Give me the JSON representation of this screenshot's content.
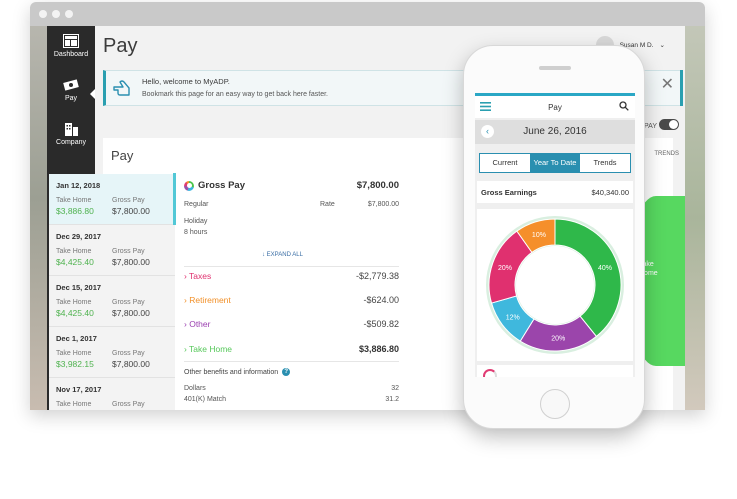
{
  "browser": {
    "dots": 3
  },
  "nav": [
    {
      "label": "Dashboard",
      "icon": "dashboard-icon"
    },
    {
      "label": "Pay",
      "icon": "pay-icon"
    },
    {
      "label": "Company",
      "icon": "company-icon"
    }
  ],
  "header": {
    "title": "Pay",
    "user": "Susan M D."
  },
  "banner": {
    "title": "Hello, welcome to MyADP.",
    "text": "Bookmark this page for an easy way to get back here faster.",
    "close": "✕"
  },
  "paysection": {
    "heading": "Pay",
    "toggle_label": "PAY",
    "trends_label": "TRENDS",
    "blob_text": "Take\nHome"
  },
  "paylist": [
    {
      "date": "Jan 12, 2018",
      "th_label": "Take Home",
      "gp_label": "Gross Pay",
      "take_home": "$3,886.80",
      "gross_pay": "$7,800.00"
    },
    {
      "date": "Dec 29, 2017",
      "th_label": "Take Home",
      "gp_label": "Gross Pay",
      "take_home": "$4,425.40",
      "gross_pay": "$7,800.00"
    },
    {
      "date": "Dec 15, 2017",
      "th_label": "Take Home",
      "gp_label": "Gross Pay",
      "take_home": "$4,425.40",
      "gross_pay": "$7,800.00"
    },
    {
      "date": "Dec 1, 2017",
      "th_label": "Take Home",
      "gp_label": "Gross Pay",
      "take_home": "$3,982.15",
      "gross_pay": "$7,800.00"
    },
    {
      "date": "Nov 17, 2017",
      "th_label": "Take Home",
      "gp_label": "Gross Pay",
      "take_home": "",
      "gross_pay": ""
    }
  ],
  "details": {
    "gross_pay_label": "Gross Pay",
    "gross_pay_amount": "$7,800.00",
    "regular": "Regular",
    "rate": "Rate",
    "rate_amount": "$7,800.00",
    "holiday": "Holiday",
    "hours": "8 hours",
    "expand": "EXPAND ALL",
    "taxes": "Taxes",
    "taxes_amount": "-$2,779.38",
    "retirement": "Retirement",
    "retirement_amount": "-$624.00",
    "other": "Other",
    "other_amount": "-$509.82",
    "take_home": "Take Home",
    "take_home_amount": "$3,886.80",
    "other_benefits": "Other benefits and information",
    "benefits": [
      {
        "label": "Dollars",
        "value": "32"
      },
      {
        "label": "401(K) Match",
        "value": "31.2"
      }
    ]
  },
  "phone": {
    "title": "Pay",
    "date": "June 26, 2016",
    "tabs": [
      "Current",
      "Year To Date",
      "Trends"
    ],
    "active_tab": "Year To Date",
    "gross_label": "Gross Earnings",
    "gross_value": "$40,340.00"
  },
  "colors": {
    "accent": "#2a8fb0",
    "take_home_green": "#4fb24f",
    "taxes": "#e0306f",
    "retirement": "#f29028",
    "other": "#9b3fb0"
  },
  "chart_data": {
    "type": "pie",
    "title": "",
    "categories": [
      "",
      "",
      "",
      "",
      ""
    ],
    "values": [
      40,
      20,
      12,
      20,
      10
    ],
    "labels": [
      "40%",
      "20%",
      "12%",
      "20%",
      "10%"
    ],
    "colors": [
      "#2fb84a",
      "#9b45ab",
      "#3fb8dd",
      "#e0306f",
      "#f58f2b"
    ]
  }
}
